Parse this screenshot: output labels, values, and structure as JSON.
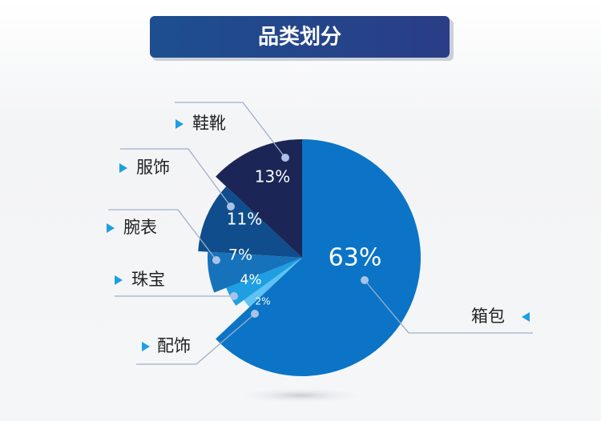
{
  "chart_data": {
    "type": "pie",
    "title": "品类划分",
    "categories": [
      "箱包",
      "配饰",
      "珠宝",
      "腕表",
      "服饰",
      "鞋靴"
    ],
    "values": [
      63,
      2,
      4,
      7,
      11,
      13
    ],
    "value_labels": [
      "63%",
      "2%",
      "4%",
      "7%",
      "11%",
      "13%"
    ],
    "colors": [
      "#0b74c6",
      "#5ec2f2",
      "#1e9fe2",
      "#1672ba",
      "#0f4d8c",
      "#1b2656"
    ]
  }
}
